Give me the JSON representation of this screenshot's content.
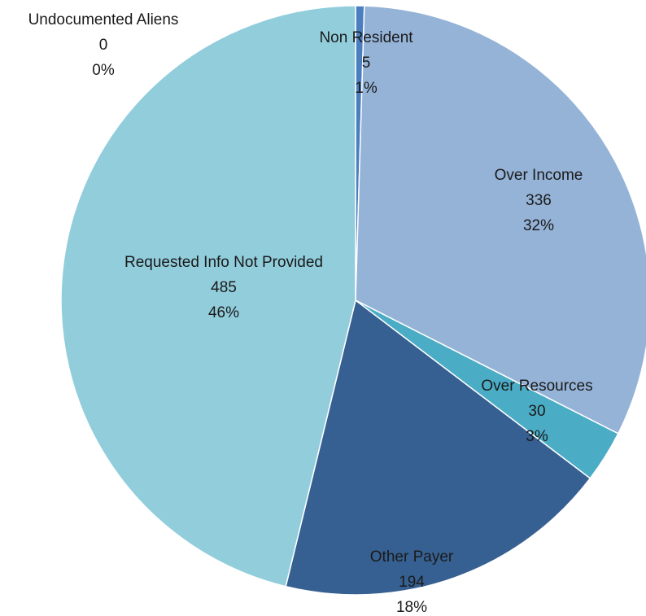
{
  "chart_data": {
    "type": "pie",
    "title": "",
    "slices": [
      {
        "name": "Non Resident",
        "value": 5,
        "percent_label": "1%",
        "color": "#4a7ebf"
      },
      {
        "name": "Over Income",
        "value": 336,
        "percent_label": "32%",
        "color": "#95b3d7"
      },
      {
        "name": "Over Resources",
        "value": 30,
        "percent_label": "3%",
        "color": "#4bacc6"
      },
      {
        "name": "Other Payer",
        "value": 194,
        "percent_label": "18%",
        "color": "#366092"
      },
      {
        "name": "Requested Info Not Provided",
        "value": 485,
        "percent_label": "46%",
        "color": "#92cddc"
      },
      {
        "name": "Undocumented Aliens",
        "value": 0,
        "percent_label": "0%",
        "color": "#1f497d"
      }
    ],
    "start_angle_deg": 0,
    "direction": "clockwise",
    "legend": "none",
    "data_labels": "category, value, percent"
  }
}
